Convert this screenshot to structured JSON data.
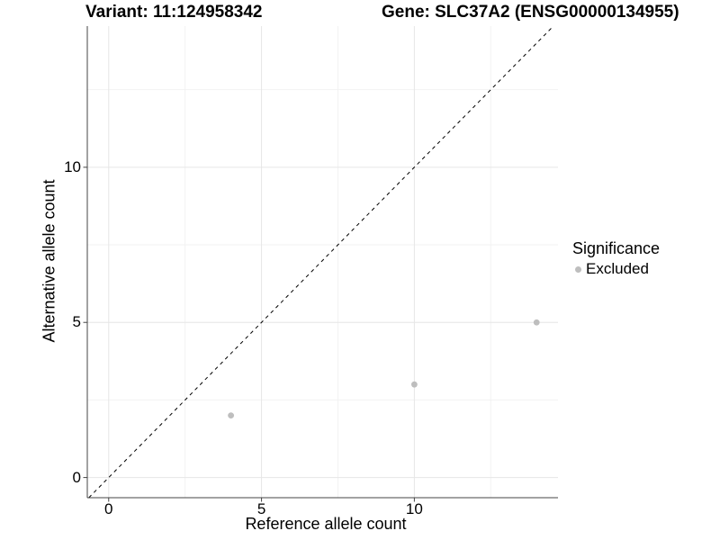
{
  "titles": {
    "variant": "Variant: 11:124958342",
    "gene": "Gene: SLC37A2 (ENSG00000134955)"
  },
  "chart_data": {
    "type": "scatter",
    "title": "",
    "xlabel": "Reference allele count",
    "ylabel": "Alternative allele count",
    "xlim": [
      -0.7,
      14.7
    ],
    "ylim": [
      -0.65,
      14.55
    ],
    "x_ticks": [
      0,
      5,
      10
    ],
    "y_ticks": [
      0,
      5,
      10
    ],
    "x_minor_gridlines": [
      2.5,
      7.5,
      12.5
    ],
    "y_minor_gridlines": [
      2.5,
      7.5,
      12.5
    ],
    "grid": "on",
    "series": [
      {
        "name": "Excluded",
        "marker": "circle",
        "color": "#bebebe",
        "points": [
          {
            "x": 4,
            "y": 2
          },
          {
            "x": 10,
            "y": 3
          },
          {
            "x": 14,
            "y": 5
          }
        ]
      }
    ],
    "reference_line": {
      "type": "identity",
      "slope": 1,
      "intercept": 0,
      "style": "dashed",
      "color": "#000000"
    },
    "legend": {
      "title": "Significance",
      "position": "right",
      "entries": [
        {
          "label": "Excluded",
          "color": "#bebebe",
          "marker": "circle"
        }
      ]
    }
  },
  "colors": {
    "background": "#ffffff",
    "grid_major": "#e6e6e6",
    "grid_minor": "#f2f2f2",
    "axis_line": "#444444",
    "point": "#bebebe",
    "text": "#000000"
  }
}
